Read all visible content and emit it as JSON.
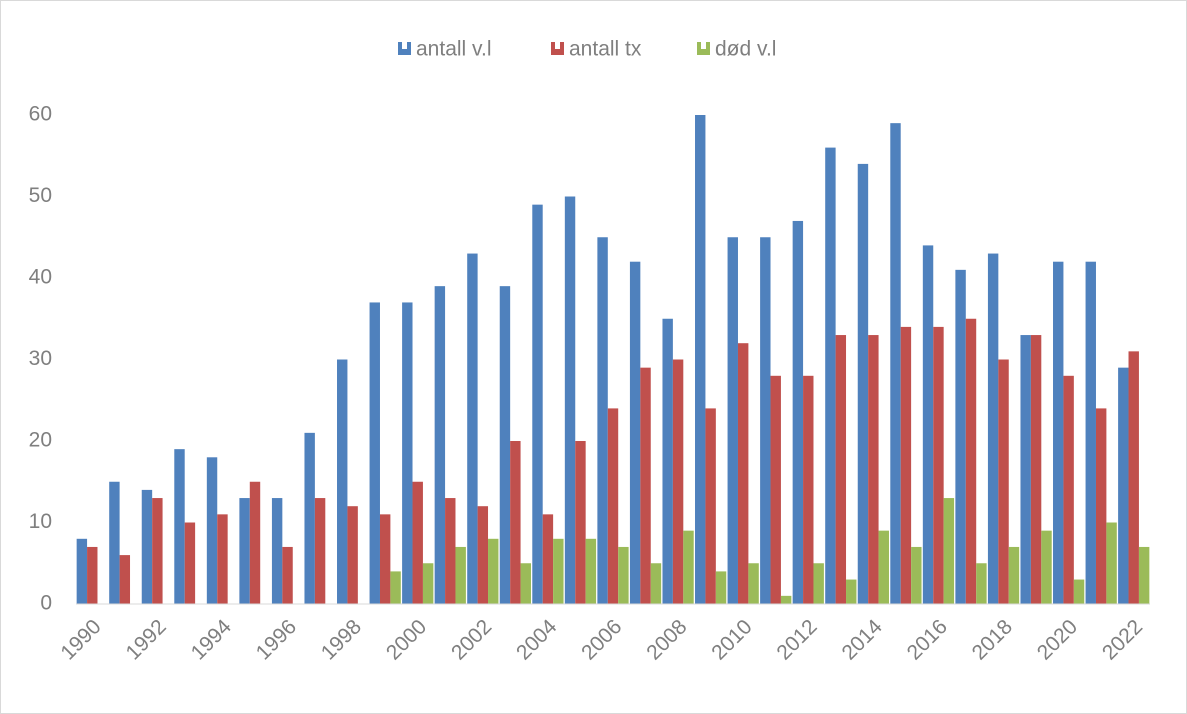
{
  "chart_data": {
    "type": "bar",
    "categories": [
      "1990",
      null,
      "1992",
      null,
      "1994",
      null,
      "1996",
      null,
      "1998",
      null,
      "2000",
      null,
      "2002",
      null,
      "2004",
      null,
      "2006",
      null,
      "2008",
      null,
      "2010",
      null,
      "2012",
      null,
      "2014",
      null,
      "2016",
      null,
      "2018",
      null,
      "2020",
      null,
      "2022"
    ],
    "series": [
      {
        "name": "antall v.l",
        "color": "#4f81bd",
        "values": [
          8,
          15,
          14,
          19,
          18,
          13,
          13,
          21,
          30,
          37,
          37,
          39,
          43,
          39,
          49,
          50,
          45,
          42,
          35,
          60,
          45,
          45,
          47,
          56,
          54,
          59,
          44,
          41,
          43,
          33,
          42,
          42,
          29
        ]
      },
      {
        "name": "antall tx",
        "color": "#c0504d",
        "values": [
          7,
          6,
          13,
          10,
          11,
          15,
          7,
          13,
          12,
          11,
          15,
          13,
          12,
          20,
          11,
          20,
          24,
          29,
          30,
          24,
          32,
          28,
          28,
          33,
          33,
          34,
          34,
          35,
          30,
          33,
          28,
          24,
          31
        ]
      },
      {
        "name": "død v.l",
        "color": "#9bbb59",
        "values": [
          0,
          0,
          0,
          0,
          0,
          0,
          0,
          0,
          0,
          4,
          5,
          7,
          8,
          5,
          8,
          8,
          7,
          5,
          9,
          4,
          5,
          1,
          5,
          3,
          9,
          7,
          13,
          5,
          7,
          9,
          3,
          10,
          7
        ]
      }
    ],
    "ylim": [
      0,
      60
    ],
    "yticks": [
      0,
      10,
      20,
      30,
      40,
      50,
      60
    ],
    "grid": false,
    "legend": "top"
  }
}
